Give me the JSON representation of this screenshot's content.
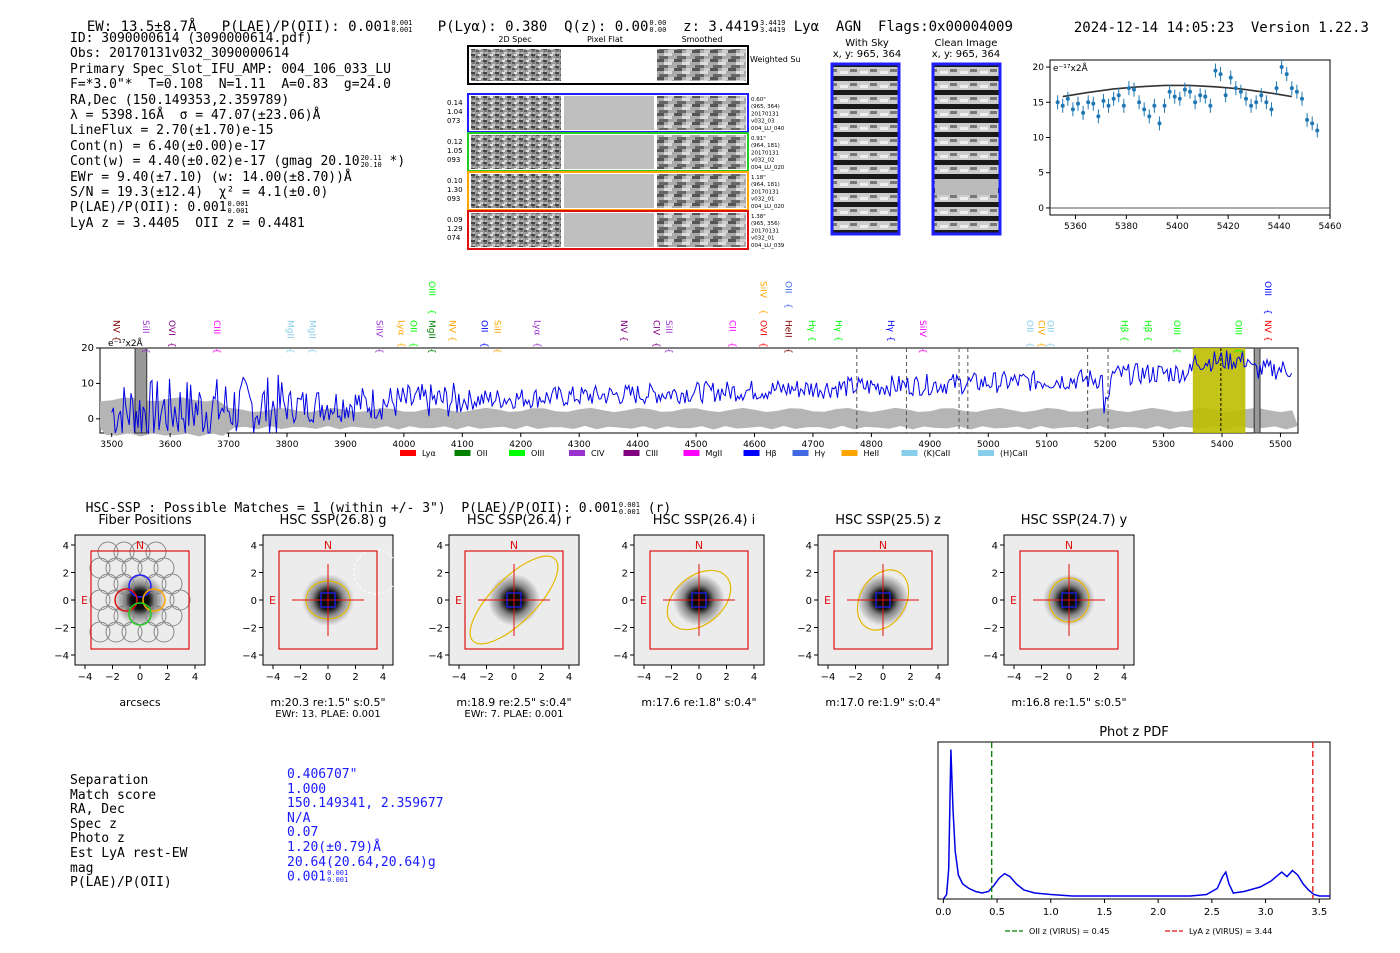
{
  "header": {
    "ew_label": "EW: 13.5±8.7Å",
    "plae_label": "P(LAE)/P(OII): 0.001",
    "plae_sup": "0.001",
    "plae_sub": "0.001",
    "plya_label": "P(Lyα): 0.380",
    "qz_label": "Q(z): 0.00",
    "qz_sup": "0.00",
    "qz_sub": "0.00",
    "z_label": "z: 3.4419",
    "z_sup": "3.4419",
    "z_sub": "3.4419",
    "lya": "Lyα",
    "agn": "AGN",
    "flags": "Flags:0x00004009",
    "timestamp": "2024-12-14 14:05:23",
    "version": "Version 1.22.3"
  },
  "info": {
    "id": "ID: 3090000614 (3090000614.pdf)",
    "obs": "Obs: 20170131v032_3090000614",
    "primary": "Primary Spec_Slot_IFU_AMP: 004_106_033_LU",
    "fit": "F=*3.0\"*  T=0.108  N=1.11  A=0.83  g=24.0",
    "radec": "RA,Dec (150.149353,2.359789)",
    "lambda": "λ = 5398.16Å  σ = 47.07(±23.06)Å",
    "lineflux": "LineFlux = 2.70(±1.70)e-15",
    "contn": "Cont(n) = 6.40(±0.00)e-17",
    "contw": "Cont(w) = 4.40(±0.02)e-17 (gmag 20.10",
    "contw_sup": "20.11",
    "contw_sub": "20.10",
    "contw_end": " *)",
    "ewr": "EWr = 9.40(±7.10) (w: 14.00(±8.70))Å",
    "sn": "S/N = 19.3(±12.4)  χ² = 4.1(±0.0)",
    "plae": "P(LAE)/P(OII): 0.001",
    "plae_sup": "0.001",
    "plae_sub": "0.001",
    "lyaz": "LyA z = 3.4405  OII z = 0.4481"
  },
  "spec2d": {
    "col_2d": "2D Spec",
    "col_flat": "Pixel Flat",
    "col_smooth": "Smoothed",
    "weighted": "Weighted\nSum",
    "rows": [
      {
        "left": [
          "0.14",
          "1.04",
          "073"
        ],
        "right": [
          "0.60\"",
          "(965, 364)",
          "20170131",
          "v032_03",
          "004_LU_040"
        ],
        "color": "#1f1fff"
      },
      {
        "left": [
          "0.12",
          "1.05",
          "093"
        ],
        "right": [
          "0.91\"",
          "(964, 181)",
          "20170131",
          "v032_02",
          "004_LU_020"
        ],
        "color": "#22cc22"
      },
      {
        "left": [
          "0.10",
          "1.30",
          "093"
        ],
        "right": [
          "1.18\"",
          "(964, 181)",
          "20170131",
          "v032_01",
          "004_LU_020"
        ],
        "color": "#ffa500"
      },
      {
        "left": [
          "0.09",
          "1.29",
          "074"
        ],
        "right": [
          "1.38\"",
          "(965, 356)",
          "20170131",
          "v032_01",
          "004_LU_039"
        ],
        "color": "#e01010"
      }
    ]
  },
  "skycut": {
    "with_sky": "With Sky",
    "with_sky_xy": "x, y: 965, 364",
    "clean": "Clean Image",
    "clean_xy": "x, y: 965, 364"
  },
  "chart_data": [
    {
      "type": "scatter",
      "title": "",
      "ylabel_note": "e⁻¹⁷x2Å",
      "xlim": [
        5350,
        5460
      ],
      "ylim": [
        -1,
        21
      ],
      "xticks": [
        5360,
        5380,
        5400,
        5420,
        5440,
        5460
      ],
      "yticks": [
        0,
        5,
        10,
        15,
        20
      ],
      "x": [
        5353,
        5355,
        5357,
        5359,
        5361,
        5363,
        5365,
        5367,
        5369,
        5371,
        5373,
        5375,
        5377,
        5379,
        5381,
        5383,
        5385,
        5387,
        5389,
        5391,
        5393,
        5395,
        5397,
        5399,
        5401,
        5403,
        5405,
        5407,
        5409,
        5411,
        5413,
        5415,
        5417,
        5419,
        5421,
        5423,
        5425,
        5427,
        5429,
        5431,
        5433,
        5435,
        5437,
        5439,
        5441,
        5443,
        5445,
        5447,
        5449,
        5451,
        5453,
        5455
      ],
      "y": [
        15,
        14.5,
        15.5,
        14,
        14.8,
        13.5,
        15,
        14.8,
        13,
        15.2,
        14.5,
        15.5,
        16,
        14.5,
        17,
        16.8,
        15,
        14,
        13,
        14.5,
        12,
        14.5,
        16.5,
        15.8,
        15.5,
        16.8,
        16.5,
        15,
        16,
        15.8,
        14.5,
        19.5,
        19,
        16,
        18.5,
        17,
        16.5,
        15.5,
        14.5,
        15,
        16,
        15,
        14,
        17,
        20,
        19,
        17,
        16.5,
        15.5,
        12.5,
        12,
        11
      ],
      "fit_curve": {
        "x": [
          5355,
          5365,
          5375,
          5385,
          5395,
          5400,
          5405,
          5415,
          5425,
          5435,
          5445
        ],
        "y": [
          15.8,
          16.4,
          16.9,
          17.2,
          17.4,
          17.4,
          17.4,
          17.2,
          16.9,
          16.4,
          15.8
        ]
      },
      "baseline": 0
    },
    {
      "type": "line",
      "ylabel_note": "e⁻¹⁷x2Å",
      "xlim": [
        3480,
        5530
      ],
      "ylim": [
        -4,
        20
      ],
      "xticks": [
        3500,
        3600,
        3700,
        3800,
        3900,
        4000,
        4100,
        4200,
        4300,
        4400,
        4500,
        4600,
        4700,
        4800,
        4900,
        5000,
        5100,
        5200,
        5300,
        5400,
        5500
      ],
      "yticks": [
        0,
        10,
        20
      ],
      "highlight_band": [
        5350,
        5440
      ],
      "highlight_line": 5398,
      "hatched_regions": [
        [
          3540,
          3560
        ],
        [
          5455,
          5465
        ]
      ],
      "dashed_lines": [
        4775,
        4860,
        4950,
        4965,
        5170,
        5205
      ],
      "legend": [
        "Lyα",
        "OII",
        "OIII",
        "CIV",
        "CIII",
        "MgII",
        "Hβ",
        "Hγ",
        "HeII",
        "(K)CaII",
        "(H)CaII"
      ],
      "legend_colors": [
        "#ff0000",
        "#008000",
        "#00ff00",
        "#9932cc",
        "#800080",
        "#ff00ff",
        "#0000ff",
        "#4169e1",
        "#ffa500",
        "#87ceeb",
        "#87ceeb"
      ],
      "line_labels": [
        {
          "name": "NV",
          "x": 3510,
          "color": "#800000"
        },
        {
          "name": "SiII",
          "x": 3560,
          "color": "#9932cc"
        },
        {
          "name": "OVI",
          "x": 3605,
          "color": "#800080"
        },
        {
          "name": "CIII",
          "x": 3682,
          "color": "#ff00ff"
        },
        {
          "name": "MgII",
          "x": 3808,
          "color": "#87ceeb"
        },
        {
          "name": "MgII",
          "x": 3845,
          "color": "#87ceeb"
        },
        {
          "name": "SiIV",
          "x": 3960,
          "color": "#9932cc"
        },
        {
          "name": "Lyα",
          "x": 3998,
          "color": "#ffa500"
        },
        {
          "name": "OII",
          "x": 4018,
          "color": "#00ff00"
        },
        {
          "name": "MgII",
          "x": 4050,
          "color": "#008000"
        },
        {
          "name": "OIII",
          "x": 4050,
          "color": "#00ff00",
          "row": "high"
        },
        {
          "name": "NV",
          "x": 4085,
          "color": "#ffa500"
        },
        {
          "name": "OII",
          "x": 4140,
          "color": "#0000ff"
        },
        {
          "name": "SiII",
          "x": 4162,
          "color": "#ffa500"
        },
        {
          "name": "Lyα",
          "x": 4230,
          "color": "#9932cc"
        },
        {
          "name": "NV",
          "x": 4378,
          "color": "#800080"
        },
        {
          "name": "CIV",
          "x": 4434,
          "color": "#800080"
        },
        {
          "name": "SiII",
          "x": 4455,
          "color": "#9932cc"
        },
        {
          "name": "CII",
          "x": 4564,
          "color": "#ff00ff"
        },
        {
          "name": "OVI",
          "x": 4617,
          "color": "#ff0000"
        },
        {
          "name": "SiIV",
          "x": 4617,
          "color": "#ffa500",
          "row": "high"
        },
        {
          "name": "HeII",
          "x": 4660,
          "color": "#800000"
        },
        {
          "name": "OII",
          "x": 4660,
          "color": "#4169e1",
          "row": "high"
        },
        {
          "name": "Hγ",
          "x": 4700,
          "color": "#00ff00"
        },
        {
          "name": "Hγ",
          "x": 4745,
          "color": "#00ff00"
        },
        {
          "name": "Hγ",
          "x": 4835,
          "color": "#0000ff"
        },
        {
          "name": "SiIV",
          "x": 4890,
          "color": "#ff00ff"
        },
        {
          "name": "OII",
          "x": 5073,
          "color": "#87ceeb"
        },
        {
          "name": "CIV",
          "x": 5093,
          "color": "#ffa500"
        },
        {
          "name": "OII",
          "x": 5108,
          "color": "#87ceeb"
        },
        {
          "name": "Hβ",
          "x": 5235,
          "color": "#00ff00"
        },
        {
          "name": "Hβ",
          "x": 5275,
          "color": "#00ff00"
        },
        {
          "name": "OIII",
          "x": 5325,
          "color": "#00ff00"
        },
        {
          "name": "OIII",
          "x": 5430,
          "color": "#00ff00"
        },
        {
          "name": "NV",
          "x": 5480,
          "color": "#ff0000"
        },
        {
          "name": "OIII",
          "x": 5480,
          "color": "#0000ff",
          "row": "high"
        }
      ]
    },
    {
      "type": "line",
      "title": "Phot z PDF",
      "xlim": [
        -0.05,
        3.6
      ],
      "xticks": [
        0.0,
        0.5,
        1.0,
        1.5,
        2.0,
        2.5,
        3.0,
        3.5
      ],
      "vlines": [
        {
          "x": 0.45,
          "color": "#008000",
          "label": "OII z (VIRUS) = 0.45"
        },
        {
          "x": 3.44,
          "color": "#e01010",
          "label": "LyA z (VIRUS) = 3.44"
        }
      ],
      "x": [
        0.0,
        0.03,
        0.05,
        0.07,
        0.09,
        0.11,
        0.14,
        0.18,
        0.24,
        0.3,
        0.36,
        0.42,
        0.47,
        0.52,
        0.57,
        0.62,
        0.68,
        0.75,
        0.85,
        1.0,
        1.2,
        1.5,
        1.8,
        2.1,
        2.3,
        2.45,
        2.55,
        2.6,
        2.63,
        2.66,
        2.7,
        2.8,
        2.95,
        3.05,
        3.1,
        3.15,
        3.2,
        3.25,
        3.3,
        3.35,
        3.4,
        3.45,
        3.5,
        3.6
      ],
      "y": [
        0.0,
        0.03,
        0.2,
        1.0,
        0.6,
        0.32,
        0.16,
        0.1,
        0.07,
        0.05,
        0.04,
        0.05,
        0.09,
        0.14,
        0.17,
        0.15,
        0.1,
        0.06,
        0.04,
        0.03,
        0.02,
        0.02,
        0.02,
        0.02,
        0.02,
        0.03,
        0.07,
        0.15,
        0.18,
        0.1,
        0.04,
        0.05,
        0.08,
        0.12,
        0.15,
        0.18,
        0.15,
        0.19,
        0.16,
        0.1,
        0.06,
        0.03,
        0.02,
        0.02
      ]
    }
  ],
  "hsc": {
    "heading": "HSC-SSP : Possible Matches = 1 (within +/- 3\")  P(LAE)/P(OII): 0.001",
    "heading_sup": "0.001",
    "heading_sub": "0.001",
    "heading_end": " (r)",
    "panels": [
      {
        "title": "Fiber Positions",
        "cap1": "arcsecs",
        "cap2": ""
      },
      {
        "title": "HSC SSP(26.8) g",
        "cap1": "m:20.3  re:1.5\"  s:0.5\"",
        "cap2": "EWr: 13. PLAE: 0.001"
      },
      {
        "title": "HSC SSP(26.4) r",
        "cap1": "m:18.9  re:2.5\"  s:0.4\"",
        "cap2": "EWr: 7. PLAE: 0.001"
      },
      {
        "title": "HSC SSP(26.4) i",
        "cap1": "m:17.6  re:1.8\"  s:0.4\"",
        "cap2": ""
      },
      {
        "title": "HSC SSP(25.5) z",
        "cap1": "m:17.0  re:1.9\"  s:0.4\"",
        "cap2": ""
      },
      {
        "title": "HSC SSP(24.7) y",
        "cap1": "m:16.8  re:1.5\"  s:0.5\"",
        "cap2": ""
      }
    ],
    "ticks": [
      "4",
      "2",
      "0",
      "−2",
      "−4"
    ],
    "xticks": [
      "−4",
      "−2",
      "0",
      "2",
      "4"
    ],
    "n_label": "N",
    "e_label": "E"
  },
  "match": {
    "labels": [
      "Separation",
      "Match score",
      "RA, Dec",
      "Spec z",
      "Photo z",
      "Est LyA rest-EW",
      "mag",
      "P(LAE)/P(OII)"
    ],
    "values": [
      "0.406707\"",
      "1.000",
      "150.149341, 2.359677",
      "N/A",
      "0.07",
      "1.20(±0.79)Å",
      "20.64(20.64,20.64)g",
      "0.001"
    ],
    "plae_sup": "0.001",
    "plae_sub": "0.001"
  }
}
